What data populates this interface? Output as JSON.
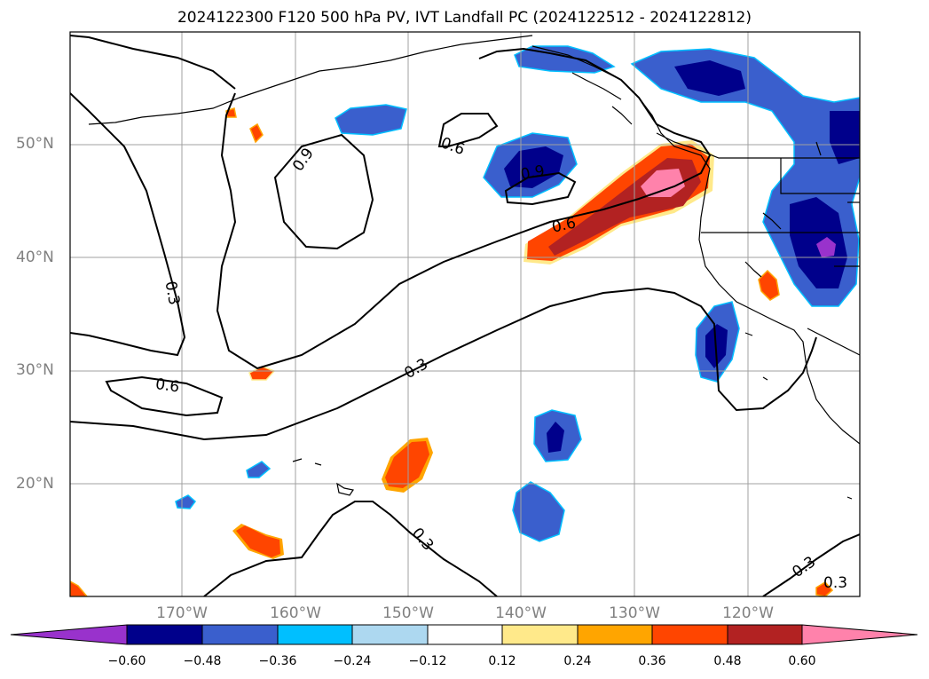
{
  "title": "2024122300 F120 500 hPa PV, IVT Landfall PC (2024122512 - 2024122812)",
  "lat_labels": [
    "50°N",
    "40°N",
    "30°N",
    "20°N"
  ],
  "lon_labels": [
    "170°W",
    "160°W",
    "150°W",
    "140°W",
    "130°W",
    "120°W"
  ],
  "contour_labels": [
    "0.9",
    "0.6",
    "0.3",
    "0.6",
    "0.9",
    "0.6",
    "0.3",
    "0.3",
    "0.3",
    "0.3"
  ],
  "colorbar": {
    "tick_labels": [
      "−0.60",
      "−0.48",
      "−0.36",
      "−0.24",
      "−0.12",
      "0.12",
      "0.24",
      "0.36",
      "0.48",
      "0.60"
    ],
    "colors": [
      "#9932cc",
      "#00008b",
      "#3a5fcd",
      "#00bfff",
      "#add8f0",
      "#ffffff",
      "#ffe98a",
      "#ffa500",
      "#ff4500",
      "#b22222",
      "#ff82ab"
    ]
  },
  "colors": {
    "coast": "#000000",
    "grid": "#a0a0a0"
  }
}
